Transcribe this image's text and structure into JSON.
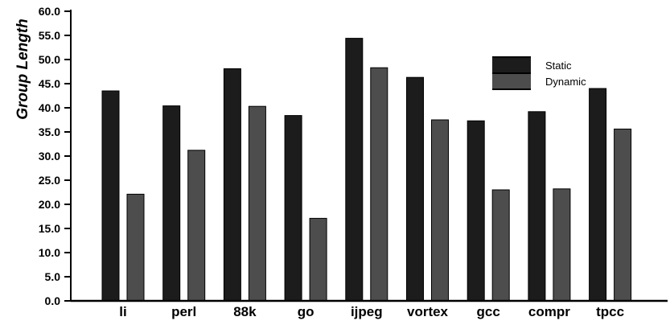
{
  "chart_data": {
    "type": "bar",
    "title": "",
    "xlabel": "",
    "ylabel": "Group Length",
    "ylim": [
      0,
      60
    ],
    "yticks": [
      "0.0",
      "5.0",
      "10.0",
      "15.0",
      "20.0",
      "25.0",
      "30.0",
      "35.0",
      "40.0",
      "45.0",
      "50.0",
      "55.0",
      "60.0"
    ],
    "grid": false,
    "legend_position": "top-right",
    "categories": [
      "li",
      "perl",
      "88k",
      "go",
      "ijpeg",
      "vortex",
      "gcc",
      "compr",
      "tpcc"
    ],
    "series": [
      {
        "name": "Static",
        "color": "#1c1c1c",
        "values": [
          43.5,
          40.4,
          48.1,
          38.4,
          54.4,
          46.3,
          37.3,
          39.2,
          44.0
        ]
      },
      {
        "name": "Dynamic",
        "color": "#4d4d4d",
        "values": [
          22.1,
          31.2,
          40.3,
          17.1,
          48.3,
          37.5,
          23.0,
          23.2,
          35.6
        ]
      }
    ]
  }
}
